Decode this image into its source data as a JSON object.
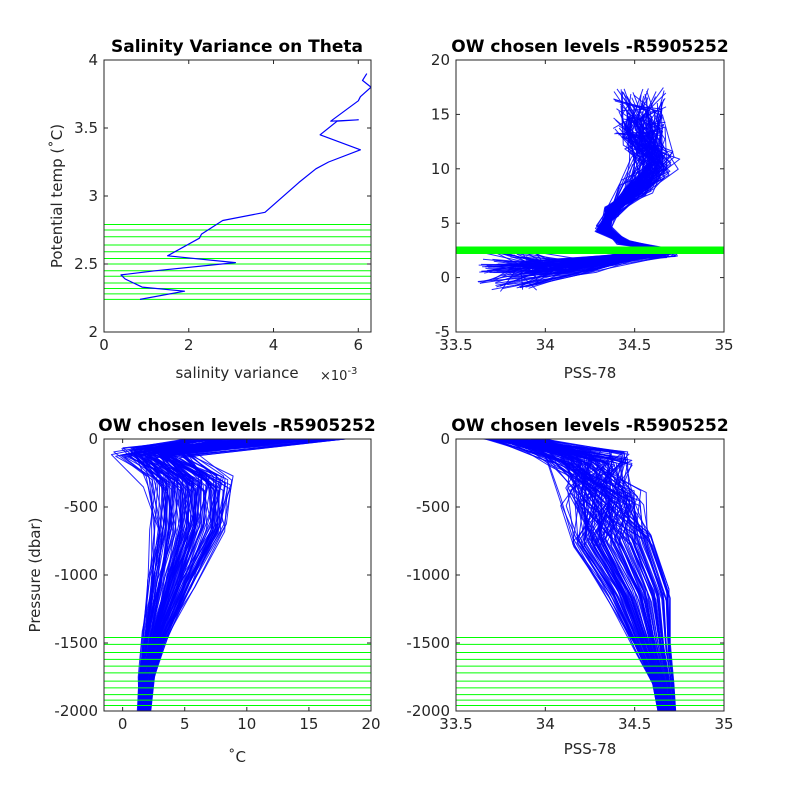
{
  "chart_data": [
    {
      "type": "line",
      "title": "Salinity Variance on Theta",
      "xlabel": "salinity variance",
      "ylabel": "Potential temp (˚C)",
      "x_exponent_label": "×10",
      "x_exponent_power": "-3",
      "xlim": [
        0,
        6.3
      ],
      "ylim": [
        2,
        4
      ],
      "xticks": [
        0,
        2,
        4,
        6
      ],
      "yticks": [
        2,
        2.5,
        3,
        3.5,
        4
      ],
      "series": [
        {
          "color": "#0000ff",
          "x": [
            0.85,
            1.9,
            0.9,
            0.5,
            0.4,
            1.2,
            3.1,
            1.5,
            2.25,
            2.3,
            2.8,
            3.8,
            4.6,
            5.0,
            5.3,
            6.05,
            5.1,
            5.5,
            6.0,
            5.35,
            6.0,
            6.05,
            6.3,
            6.1,
            6.2
          ],
          "y": [
            2.24,
            2.3,
            2.33,
            2.39,
            2.42,
            2.45,
            2.51,
            2.56,
            2.69,
            2.72,
            2.82,
            2.88,
            3.1,
            3.2,
            3.25,
            3.34,
            3.45,
            3.55,
            3.56,
            3.55,
            3.7,
            3.73,
            3.8,
            3.85,
            3.9
          ]
        }
      ],
      "chosen_levels": [
        2.24,
        2.28,
        2.32,
        2.36,
        2.41,
        2.45,
        2.5,
        2.54,
        2.59,
        2.64,
        2.7,
        2.75,
        2.79
      ],
      "chosen_levels_color": "#00ff00"
    },
    {
      "type": "line",
      "title": "OW chosen levels -R5905252",
      "xlabel": "PSS-78",
      "ylabel": "",
      "xlim": [
        33.5,
        35
      ],
      "ylim": [
        -5,
        20
      ],
      "xticks": [
        33.5,
        34,
        34.5,
        35
      ],
      "yticks": [
        -5,
        0,
        5,
        10,
        15,
        20
      ],
      "series": [
        {
          "color": "#0000ff",
          "x": [
            33.8,
            33.85,
            33.95,
            34.05,
            34.2,
            34.35,
            34.45,
            34.55,
            34.65,
            34.72,
            34.6,
            34.45,
            34.35,
            34.32,
            34.4,
            34.5,
            34.6,
            34.65,
            34.6,
            34.5,
            34.45
          ],
          "y": [
            -1.2,
            0,
            0.5,
            1,
            1.5,
            1.8,
            2,
            2.1,
            2.2,
            1.2,
            2.3,
            3,
            4,
            5,
            6.5,
            8,
            9.5,
            10.5,
            12,
            14,
            16
          ]
        }
      ],
      "chosen_levels": [
        2.24,
        2.28,
        2.32,
        2.36,
        2.41,
        2.45,
        2.5,
        2.54,
        2.59,
        2.64,
        2.7,
        2.75,
        2.79
      ],
      "chosen_levels_color": "#00ff00"
    },
    {
      "type": "line",
      "title": "OW chosen levels -R5905252",
      "xlabel": "˚C",
      "ylabel": "Pressure (dbar)",
      "xlim": [
        -1.5,
        20
      ],
      "ylim": [
        -2000,
        0
      ],
      "xticks": [
        0,
        5,
        10,
        15,
        20
      ],
      "yticks": [
        -2000,
        -1500,
        -1000,
        -500,
        0
      ],
      "series": [
        {
          "color": "#0000ff",
          "x": [
            9.5,
            6,
            4,
            3,
            2.5,
            2.2,
            2.0
          ],
          "y": [
            0,
            -200,
            -500,
            -900,
            -1300,
            -1700,
            -2000
          ]
        }
      ],
      "chosen_levels": [
        -1460,
        -1510,
        -1570,
        -1620,
        -1670,
        -1720,
        -1780,
        -1830,
        -1880,
        -1920,
        -1960
      ],
      "chosen_levels_color": "#00ff00"
    },
    {
      "type": "line",
      "title": "OW chosen levels -R5905252",
      "xlabel": "PSS-78",
      "ylabel": "",
      "xlim": [
        33.5,
        35
      ],
      "ylim": [
        -2000,
        0
      ],
      "xticks": [
        33.5,
        34,
        34.5,
        35
      ],
      "yticks": [
        -2000,
        -1500,
        -1000,
        -500,
        0
      ],
      "series": [
        {
          "color": "#0000ff",
          "x": [
            34.2,
            34.15,
            34.2,
            34.3,
            34.4,
            34.5,
            34.6,
            34.65
          ],
          "y": [
            0,
            -200,
            -400,
            -700,
            -1000,
            -1300,
            -1600,
            -2000
          ]
        }
      ],
      "chosen_levels": [
        -1460,
        -1510,
        -1570,
        -1620,
        -1670,
        -1720,
        -1780,
        -1830,
        -1880,
        -1920,
        -1960
      ],
      "chosen_levels_color": "#00ff00"
    }
  ]
}
